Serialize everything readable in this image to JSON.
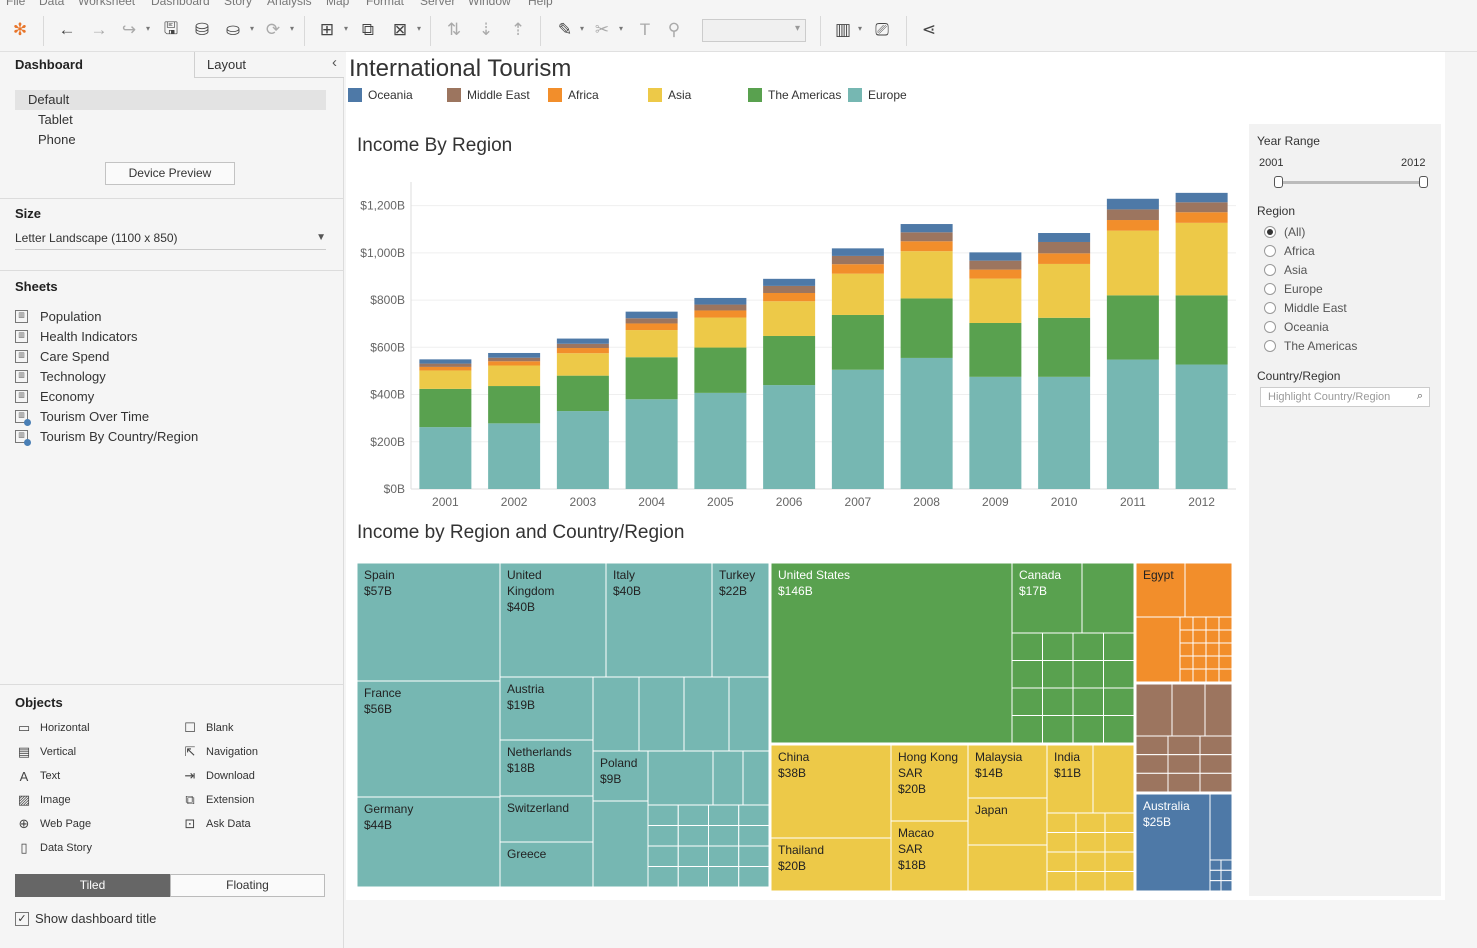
{
  "menu": [
    "File",
    "Data",
    "Worksheet",
    "Dashboard",
    "Story",
    "Analysis",
    "Map",
    "Format",
    "Server",
    "Window",
    "Help"
  ],
  "left": {
    "tab_dashboard": "Dashboard",
    "tab_layout": "Layout",
    "devices": [
      "Default",
      "Tablet",
      "Phone"
    ],
    "device_preview": "Device Preview",
    "size_title": "Size",
    "size_value": "Letter Landscape (1100 x 850)",
    "sheets_title": "Sheets",
    "sheets": [
      "Population",
      "Health Indicators",
      "Care Spend",
      "Technology",
      "Economy",
      "Tourism Over Time",
      "Tourism By Country/Region"
    ],
    "objects_title": "Objects",
    "objects_left": [
      "Horizontal",
      "Vertical",
      "Text",
      "Image",
      "Web Page",
      "Data Story"
    ],
    "objects_right": [
      "Blank",
      "Navigation",
      "Download",
      "Extension",
      "Ask Data"
    ],
    "tiled": "Tiled",
    "floating": "Floating",
    "show_title": "Show dashboard title",
    "check_mark": "✓"
  },
  "dashboard": {
    "title": "International Tourism",
    "legend": [
      {
        "name": "Oceania",
        "color": "#4e79a7"
      },
      {
        "name": "Middle East",
        "color": "#9c755f"
      },
      {
        "name": "Africa",
        "color": "#f28e2b"
      },
      {
        "name": "Asia",
        "color": "#edc948"
      },
      {
        "name": "The Americas",
        "color": "#59a14f"
      },
      {
        "name": "Europe",
        "color": "#76b7b2"
      }
    ],
    "bar_title": "Income By Region",
    "treemap_title": "Income by Region and Country/Region"
  },
  "filters": {
    "year_range_label": "Year Range",
    "year_min": "2001",
    "year_max": "2012",
    "region_label": "Region",
    "regions": [
      "(All)",
      "Africa",
      "Asia",
      "Europe",
      "Middle East",
      "Oceania",
      "The Americas"
    ],
    "selected_region": "(All)",
    "country_label": "Country/Region",
    "country_placeholder": "Highlight Country/Region",
    "search_glyph": "⌕"
  },
  "chart_data": {
    "type": "bar",
    "stacked": true,
    "categories": [
      "2001",
      "2002",
      "2003",
      "2004",
      "2005",
      "2006",
      "2007",
      "2008",
      "2009",
      "2010",
      "2011",
      "2012"
    ],
    "ylim": [
      0,
      1300
    ],
    "yticks": [
      "$0B",
      "$200B",
      "$400B",
      "$600B",
      "$800B",
      "$1,000B",
      "$1,200B"
    ],
    "series": [
      {
        "name": "Europe",
        "color": "#76b7b2",
        "values": [
          262,
          278,
          330,
          380,
          407,
          440,
          505,
          555,
          475,
          475,
          548,
          527
        ]
      },
      {
        "name": "The Americas",
        "color": "#59a14f",
        "values": [
          162,
          158,
          150,
          178,
          192,
          208,
          232,
          252,
          228,
          250,
          272,
          293
        ]
      },
      {
        "name": "Asia",
        "color": "#edc948",
        "values": [
          78,
          87,
          95,
          115,
          127,
          147,
          175,
          200,
          188,
          228,
          274,
          307
        ]
      },
      {
        "name": "Africa",
        "color": "#f28e2b",
        "values": [
          15,
          18,
          22,
          28,
          30,
          35,
          40,
          42,
          38,
          45,
          45,
          45
        ]
      },
      {
        "name": "Middle East",
        "color": "#9c755f",
        "values": [
          14,
          15,
          18,
          22,
          25,
          30,
          35,
          38,
          38,
          48,
          45,
          42
        ]
      },
      {
        "name": "Oceania",
        "color": "#4e79a7",
        "values": [
          18,
          20,
          22,
          28,
          28,
          30,
          32,
          35,
          35,
          38,
          45,
          40
        ]
      }
    ]
  },
  "treemap": [
    {
      "name": "Spain",
      "value": "$57B",
      "color": "#76b7b2"
    },
    {
      "name": "France",
      "value": "$56B",
      "color": "#76b7b2"
    },
    {
      "name": "Germany",
      "value": "$44B",
      "color": "#76b7b2"
    },
    {
      "name": "United Kingdom",
      "value": "$40B",
      "color": "#76b7b2"
    },
    {
      "name": "Italy",
      "value": "$40B",
      "color": "#76b7b2"
    },
    {
      "name": "Turkey",
      "value": "$22B",
      "color": "#76b7b2"
    },
    {
      "name": "Austria",
      "value": "$19B",
      "color": "#76b7b2"
    },
    {
      "name": "Netherlands",
      "value": "$18B",
      "color": "#76b7b2"
    },
    {
      "name": "Poland",
      "value": "$9B",
      "color": "#76b7b2"
    },
    {
      "name": "Switzerland",
      "value": "",
      "color": "#76b7b2"
    },
    {
      "name": "Greece",
      "value": "",
      "color": "#76b7b2"
    },
    {
      "name": "United States",
      "value": "$146B",
      "color": "#59a14f"
    },
    {
      "name": "Canada",
      "value": "$17B",
      "color": "#59a14f"
    },
    {
      "name": "China",
      "value": "$38B",
      "color": "#edc948"
    },
    {
      "name": "Thailand",
      "value": "$20B",
      "color": "#edc948"
    },
    {
      "name": "Hong Kong SAR",
      "value": "$20B",
      "color": "#edc948"
    },
    {
      "name": "Macao SAR",
      "value": "$18B",
      "color": "#edc948"
    },
    {
      "name": "Malaysia",
      "value": "$14B",
      "color": "#edc948"
    },
    {
      "name": "Japan",
      "value": "",
      "color": "#edc948"
    },
    {
      "name": "India",
      "value": "$11B",
      "color": "#edc948"
    },
    {
      "name": "Egypt",
      "value": "",
      "color": "#f28e2b"
    },
    {
      "name": "Australia",
      "value": "$25B",
      "color": "#4e79a7"
    }
  ]
}
